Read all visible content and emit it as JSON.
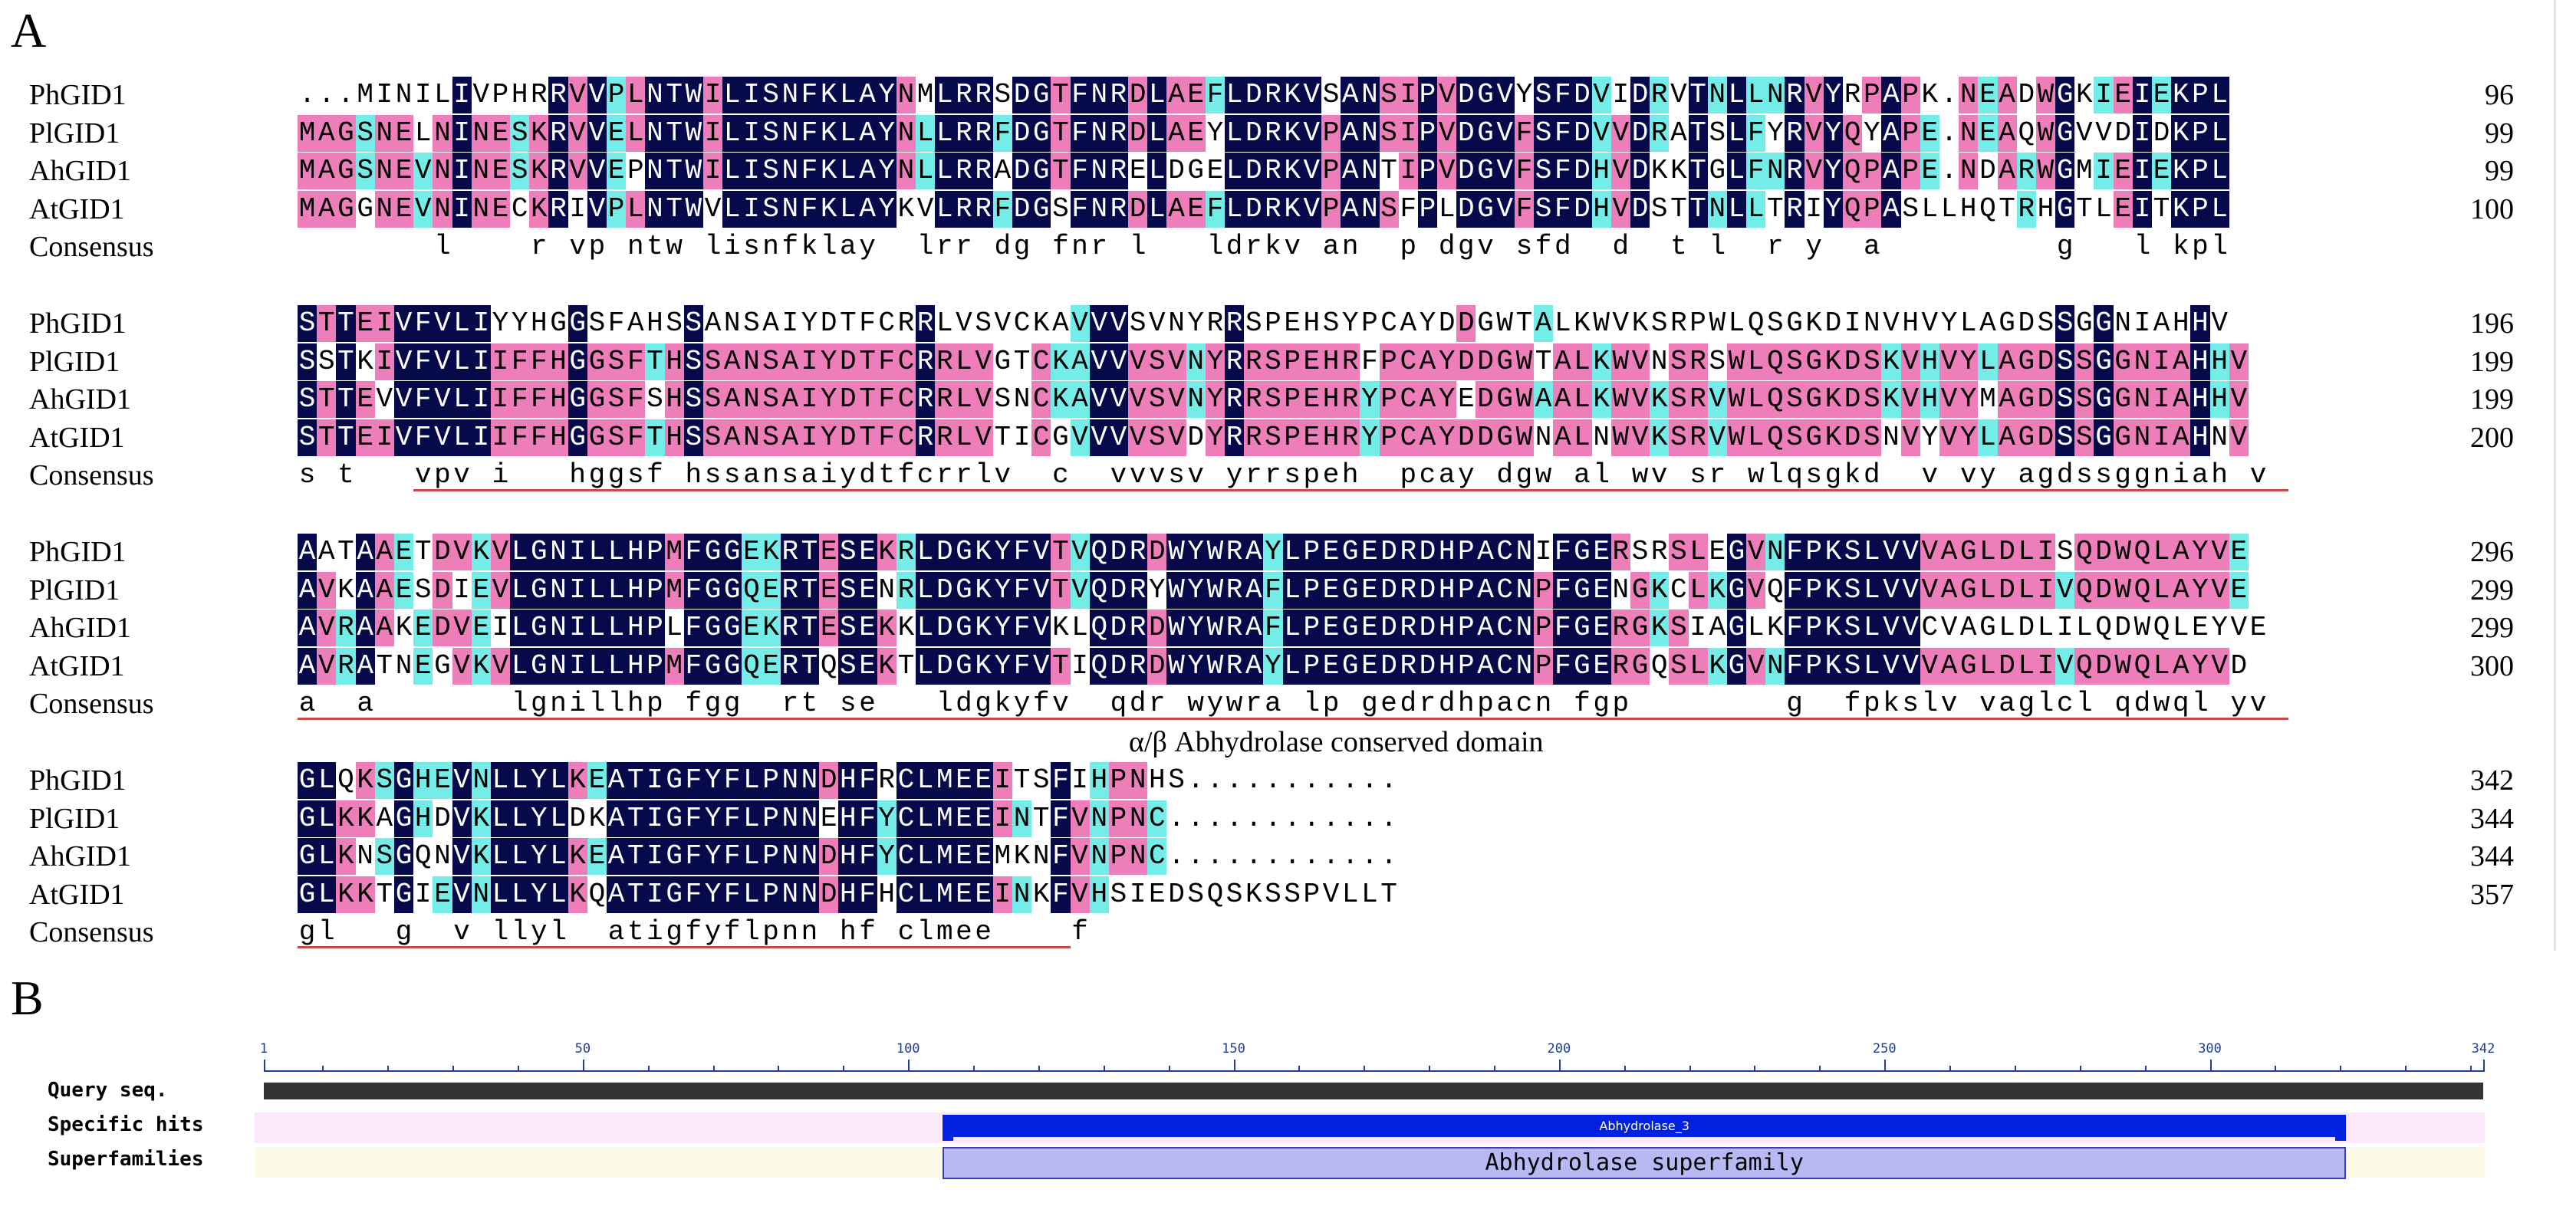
{
  "panels": {
    "a": "A",
    "b": "B"
  },
  "alignment": {
    "blocks": [
      {
        "rows": [
          {
            "name": "PhGID1",
            "seq": "...MINILIVPHRRVVPLNTWILISNFKLAYNMLRRSDGTFNRDLAEFLDRKVSANSIPVDGVYSFDVIDRVTNLLNRVYRPAPK.NEADWGKIEIEKPL",
            "num": "96"
          },
          {
            "name": "PlGID1",
            "seq": "MAGSNELNINESKRVVELNTWILISNFKLAYNLLRRFDGTFNRDLAEYLDRKVPANSIPVDGVFSFDVVDRATSLFYRVYQYAPE.NEAQWGVVDIDKPL",
            "num": "99"
          },
          {
            "name": "AhGID1",
            "seq": "MAGSNEVNINESKRVVEPNTWILISNFKLAYNLLRRADGTFNRELDGELDRKVPANTIPVDGVFSFDHVDKKTGLFNRVYQPAPE.NDARWGMIEIEKPL",
            "num": "99"
          },
          {
            "name": "AtGID1",
            "seq": "MAGGNEVNINECKRIVPLNTWVLISNFKLAYKVLRRFDGSFNRDLAEFLDRKVPANSFPLDGVFSFDHVDSTTNLLTRIYQPASLLHQTRHGTLEITKPL",
            "num": "100"
          },
          {
            "name": "Consensus",
            "seq": "       l    r vp ntw lisnfklay  lrr dg fnr l   ldrkv an  p dgv sfd  d  t l  r y  a         g   l kpl",
            "num": ""
          }
        ]
      },
      {
        "rows": [
          {
            "name": "PhGID1",
            "seq": "STTEIVFVLIYYHGGSFAHSSANSAIYDTFCRRLVSVCKAVVVSVNYRRSPEHSYPCAYDDGWTALKWVKSRPWLQSGKDINVHVYLAGDSSGGNIAHHV",
            "num": "196"
          },
          {
            "name": "PlGID1",
            "seq": "SSTKIVFVLIIFFHGGSFTHSSANSAIYDTFCRRLVGTCKAVVVSVNYRRSPEHRFPCAYDDGWTALKWVNSRSWLQSGKDSKVHVYLAGDSSGGNIAHHV",
            "num": "199"
          },
          {
            "name": "AhGID1",
            "seq": "STTEVVFVLIIFFHGGSFSHSSANSAIYDTFCRRLVSNCKAVVVSVNYRRSPEHRYPCAYEDGWAALKWVKSRVWLQSGKDSKVHVYMAGDSSGGNIAHHV",
            "num": "199"
          },
          {
            "name": "AtGID1",
            "seq": "STTEIVFVLIIFFHGGSFTHSSANSAIYDTFCRRLVTICGVVVVSVDYRRSPEHRYPCAYDDGWNALNWVKSRVWLQSGKDSNVYVYLAGDSSGGNIAHNV",
            "num": "200"
          },
          {
            "name": "Consensus",
            "seq": "s t   vpv i   hggsf hssansaiydtfcrrlv  c  vvvsv yrrspeh  pcay dgw al wv sr wlqsgkd  v vy agdssggniah v",
            "num": ""
          }
        ]
      },
      {
        "rows": [
          {
            "name": "PhGID1",
            "seq": "AATAAETDVKVLGNILLHPMFGGEKRTESEKRLDGKYFVTVQDRDWYWRAYLPEGEDRDHPACNIFGERSRSLEGVNFPKSLVVVAGLDLISQDWQLAYVE",
            "num": "296"
          },
          {
            "name": "PlGID1",
            "seq": "AVKAAESDIEVLGNILLHPMFGGQERTESENRLDGKYFVTVQDRYWYWRAFLPEGEDRDHPACNPFGENGKCLKGVQFPKSLVVVAGLDLIVQDWQLAYVE",
            "num": "299"
          },
          {
            "name": "AhGID1",
            "seq": "AVRAAKEDVEILGNILLHPLFGGEKRTESEKKLDGKYFVKLQDRDWYWRAFLPEGEDRDHPACNPFGERGKSIAGLKFPKSLVVCVAGLDLILQDWQLEYVE",
            "num": "299"
          },
          {
            "name": "AtGID1",
            "seq": "AVRATNEGVKVLGNILLHPMFGGQERTQSEKTLDGKYFVTIQDRDWYWRAYLPEGEDRDHPACNPFGERGQSLKGVNFPKSLVVVAGLDLIVQDWQLAYVD",
            "num": "300"
          },
          {
            "name": "Consensus",
            "seq": "a  a       lgnillhp fgg  rt se   ldgkyfv  qdr wywra lp gedrdhpacn fgp        g  fpkslv vaglcl qdwql yv",
            "num": ""
          }
        ]
      },
      {
        "rows": [
          {
            "name": "PhGID1",
            "seq": "GLQKSGHEVNLLYLKEATIGFYFLPNNDHFRCLMEEITSFIHPNHS...........",
            "num": "342"
          },
          {
            "name": "PlGID1",
            "seq": "GLKKAGHDVKLLYLDKATIGFYFLPNNEHFYCLMEEINTFVNPNC............",
            "num": "344"
          },
          {
            "name": "AhGID1",
            "seq": "GLKNSGQNVKLLYLKEATIGFYFLPNNDHFYCLMEEMKNFVNPNC............",
            "num": "344"
          },
          {
            "name": "AtGID1",
            "seq": "GLKKTGIEVNLLYLKQATIGFYFLPNNDHFHCLMEEINKFVHSIEDSQSKSSPVLLT",
            "num": "357"
          },
          {
            "name": "Consensus",
            "seq": "gl   g  v llyl  atigfyflpnn hf clmee    f",
            "num": ""
          }
        ]
      }
    ],
    "domain_label": "α/β Abhydrolase conserved domain"
  },
  "domain_map": {
    "query_label": "Query seq.",
    "specific_label": "Specific hits",
    "superfamily_label": "Superfamilies",
    "ruler": {
      "min": 1,
      "max": 342,
      "ticks": [
        1,
        50,
        100,
        150,
        200,
        250,
        300,
        342
      ]
    },
    "specific_hit": {
      "name": "Abhydrolase_3",
      "start": 106,
      "end": 320
    },
    "superfamily": {
      "name": "Abhydrolase superfamily",
      "start": 106,
      "end": 320
    },
    "colors": {
      "ruler": "#1f3d9c",
      "query_bar": "#333333",
      "hit": "#0022e0",
      "superfamily": "#b8b9f3",
      "specific_band": "#fde8fb",
      "super_band": "#fdfbe8"
    }
  },
  "colors": {
    "identical": "#060a4a",
    "high": "#ee7eb9",
    "low": "#74ede9",
    "underline": "#c74a4a"
  }
}
